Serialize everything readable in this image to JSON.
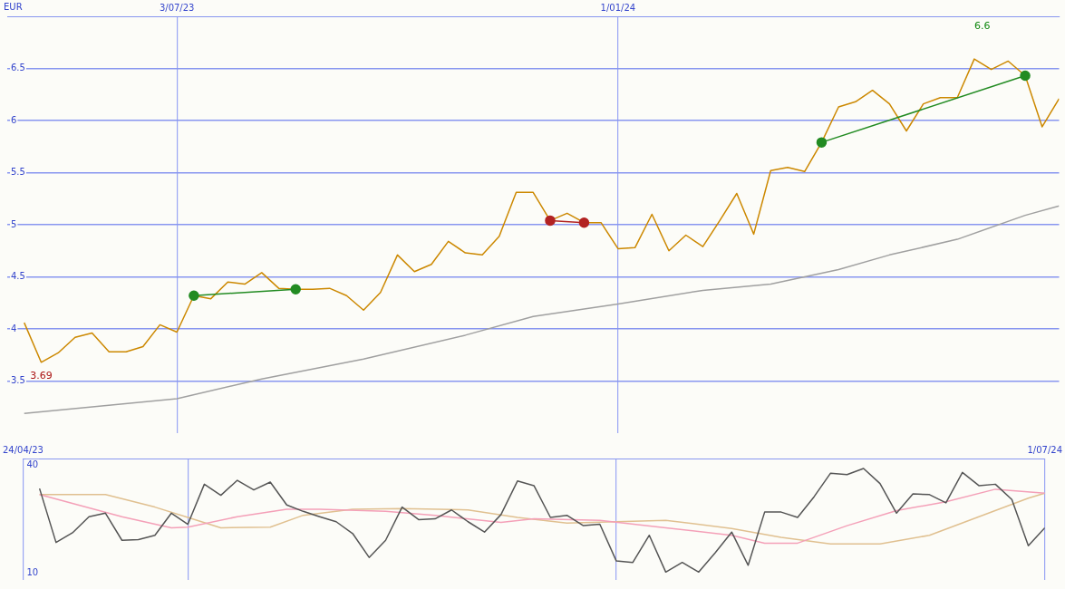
{
  "chart_data": [
    {
      "type": "line",
      "ylabel": "EUR",
      "x": [
        "2023-05-01",
        "2023-05-08",
        "2023-05-15",
        "2023-05-22",
        "2023-05-29",
        "2023-06-05",
        "2023-06-12",
        "2023-06-19",
        "2023-06-26",
        "2023-07-03",
        "2023-07-10",
        "2023-07-17",
        "2023-07-24",
        "2023-07-31",
        "2023-08-07",
        "2023-08-14",
        "2023-08-21",
        "2023-08-28",
        "2023-09-04",
        "2023-09-11",
        "2023-09-18",
        "2023-09-25",
        "2023-10-02",
        "2023-10-09",
        "2023-10-16",
        "2023-10-23",
        "2023-10-30",
        "2023-11-06",
        "2023-11-13",
        "2023-11-20",
        "2023-11-27",
        "2023-12-04",
        "2023-12-11",
        "2023-12-18",
        "2023-12-25",
        "2024-01-01",
        "2024-01-08",
        "2024-01-15",
        "2024-01-22",
        "2024-01-29",
        "2024-02-05",
        "2024-02-12",
        "2024-02-19",
        "2024-02-26",
        "2024-03-04",
        "2024-03-11",
        "2024-03-18",
        "2024-03-25",
        "2024-04-01",
        "2024-04-08",
        "2024-04-15",
        "2024-04-22",
        "2024-04-29",
        "2024-05-06",
        "2024-05-13",
        "2024-05-20",
        "2024-05-27",
        "2024-06-03",
        "2024-06-10",
        "2024-06-17",
        "2024-06-24",
        "2024-07-01"
      ],
      "series": [
        {
          "color": "#a0a0a0",
          "x": [
            "2023-05-01",
            "2023-07-03",
            "2023-08-07",
            "2023-09-18",
            "2023-10-30",
            "2023-11-27",
            "2024-01-01",
            "2024-02-05",
            "2024-03-04",
            "2024-04-01",
            "2024-04-22",
            "2024-05-20",
            "2024-06-17",
            "2024-07-01"
          ],
          "values": [
            3.19,
            3.33,
            3.52,
            3.71,
            3.94,
            4.12,
            4.24,
            4.37,
            4.43,
            4.57,
            4.71,
            4.86,
            5.09,
            5.18
          ]
        },
        {
          "color": "#cc8800",
          "values": [
            4.06,
            3.68,
            3.77,
            3.92,
            3.96,
            3.78,
            3.78,
            3.83,
            4.04,
            3.97,
            4.32,
            4.29,
            4.45,
            4.43,
            4.54,
            4.39,
            4.38,
            4.38,
            4.39,
            4.32,
            4.18,
            4.35,
            4.71,
            4.55,
            4.62,
            4.84,
            4.73,
            4.71,
            4.89,
            5.31,
            5.31,
            5.04,
            5.11,
            5.02,
            5.02,
            4.77,
            4.78,
            5.1,
            4.75,
            4.9,
            4.79,
            5.04,
            5.3,
            4.91,
            5.52,
            5.55,
            5.51,
            5.79,
            6.13,
            6.18,
            6.29,
            6.16,
            5.9,
            6.16,
            6.22,
            6.22,
            6.59,
            6.49,
            6.57,
            6.43,
            5.94,
            6.21
          ]
        },
        {
          "color": "#228b22",
          "marker": "circle",
          "x": [
            "2023-07-10",
            "2023-08-21"
          ],
          "values": [
            4.32,
            4.38
          ]
        },
        {
          "color": "#b22222",
          "marker": "circle",
          "x": [
            "2023-12-04",
            "2023-12-18"
          ],
          "values": [
            5.04,
            5.02
          ]
        },
        {
          "color": "#228b22",
          "marker": "circle",
          "x": [
            "2024-03-25",
            "2024-06-17"
          ],
          "values": [
            5.79,
            6.43
          ]
        }
      ],
      "xlim": [
        "2023-04-24",
        "2024-07-01"
      ],
      "xticks": [
        {
          "value": "2023-07-03",
          "label": "3/07/23"
        },
        {
          "value": "2024-01-01",
          "label": "1/01/24"
        }
      ],
      "ylim": [
        3.0,
        7.0
      ],
      "yticks": [
        3.5,
        4,
        4.5,
        5,
        5.5,
        6,
        6.5
      ],
      "grid": true,
      "legend": false,
      "annotations": [
        "6.6",
        {
          "text": "3.69",
          "x": "2023-05-08",
          "y": 3.68
        }
      ]
    },
    {
      "type": "line",
      "x": [
        "2023-05-01",
        "2023-05-08",
        "2023-05-15",
        "2023-05-22",
        "2023-05-29",
        "2023-06-05",
        "2023-06-12",
        "2023-06-19",
        "2023-06-26",
        "2023-07-03",
        "2023-07-10",
        "2023-07-17",
        "2023-07-24",
        "2023-07-31",
        "2023-08-07",
        "2023-08-14",
        "2023-08-21",
        "2023-08-28",
        "2023-09-04",
        "2023-09-11",
        "2023-09-18",
        "2023-09-25",
        "2023-10-02",
        "2023-10-09",
        "2023-10-16",
        "2023-10-23",
        "2023-10-30",
        "2023-11-06",
        "2023-11-13",
        "2023-11-20",
        "2023-11-27",
        "2023-12-04",
        "2023-12-11",
        "2023-12-18",
        "2023-12-25",
        "2024-01-01",
        "2024-01-08",
        "2024-01-15",
        "2024-01-22",
        "2024-01-29",
        "2024-02-05",
        "2024-02-12",
        "2024-02-19",
        "2024-02-26",
        "2024-03-04",
        "2024-03-11",
        "2024-03-18",
        "2024-03-25",
        "2024-04-01",
        "2024-04-08",
        "2024-04-15",
        "2024-04-22",
        "2024-04-29",
        "2024-05-06",
        "2024-05-13",
        "2024-05-20",
        "2024-05-27",
        "2024-06-03",
        "2024-06-10",
        "2024-06-17",
        "2024-06-24",
        "2024-07-01"
      ],
      "series": [
        {
          "color": "#e0c090",
          "x": [
            "2023-05-01",
            "2023-05-29",
            "2023-06-19",
            "2023-07-03",
            "2023-07-17",
            "2023-08-07",
            "2023-08-21",
            "2023-09-11",
            "2023-10-02",
            "2023-10-30",
            "2023-11-20",
            "2023-12-11",
            "2024-01-22",
            "2024-02-19",
            "2024-03-11",
            "2024-04-01",
            "2024-04-22",
            "2024-05-13",
            "2024-06-03",
            "2024-06-24",
            "2024-07-01"
          ],
          "values": [
            31.9,
            31.9,
            28.4,
            25.5,
            22.6,
            22.8,
            26.1,
            27.8,
            28,
            27.6,
            25.5,
            23.9,
            24.7,
            22.4,
            19.9,
            18.1,
            18.1,
            20.5,
            25.7,
            30.9,
            32.3
          ]
        },
        {
          "color": "#f4a0b8",
          "x": [
            "2023-05-01",
            "2023-06-05",
            "2023-06-26",
            "2023-07-03",
            "2023-07-24",
            "2023-08-14",
            "2023-08-28",
            "2023-09-25",
            "2023-10-16",
            "2023-11-13",
            "2023-11-27",
            "2023-12-25",
            "2024-01-22",
            "2024-02-19",
            "2024-03-04",
            "2024-03-18",
            "2024-04-08",
            "2024-04-29",
            "2024-05-20",
            "2024-06-10",
            "2024-07-01"
          ],
          "values": [
            31.9,
            25.7,
            22.6,
            22.8,
            25.7,
            27.8,
            27.8,
            27.2,
            26.1,
            24.1,
            25.1,
            24.7,
            22.6,
            20.5,
            18.3,
            18.3,
            23.2,
            27.4,
            29.9,
            33.4,
            32.3
          ]
        },
        {
          "color": "#555555",
          "values": [
            33.6,
            18.5,
            21.2,
            25.7,
            26.7,
            19.1,
            19.3,
            20.5,
            26.7,
            23.6,
            34.8,
            31.7,
            35.9,
            33.2,
            35.4,
            29,
            27.2,
            25.7,
            24.3,
            21,
            14.3,
            19.1,
            28.4,
            24.9,
            25.1,
            27.6,
            24.3,
            21.4,
            26.3,
            35.7,
            34.4,
            25.5,
            26.1,
            23.2,
            23.6,
            13.3,
            12.9,
            20.5,
            10.2,
            12.9,
            10.2,
            15.6,
            21.4,
            12.1,
            27,
            27,
            25.5,
            31.3,
            37.9,
            37.5,
            39.2,
            35,
            26.7,
            32.1,
            31.9,
            29.6,
            38.1,
            34.4,
            34.8,
            30.5,
            17.6,
            22.6
          ]
        }
      ],
      "xlim": [
        "2023-04-24",
        "2024-07-01"
      ],
      "xticks": [
        {
          "value": "2023-04-24",
          "label": "24/04/23"
        },
        {
          "value": "2023-07-03",
          "label": null
        },
        {
          "value": "2024-01-01",
          "label": null
        },
        {
          "value": "2024-07-01",
          "label": "1/07/24"
        }
      ],
      "ylim": [
        8,
        42
      ],
      "yticks": [
        10,
        40
      ],
      "grid": "x",
      "legend": false
    }
  ]
}
